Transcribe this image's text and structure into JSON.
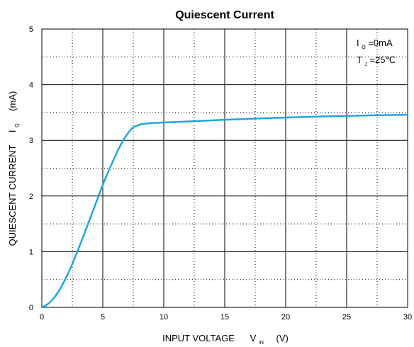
{
  "chart_data": {
    "type": "line",
    "title": "Quiescent Current",
    "xlabel": "INPUT VOLTAGE",
    "xlabel_symbol": "V",
    "xlabel_sub": "IN",
    "xlabel_unit": "(V)",
    "ylabel": "QUIESCENT CURRENT",
    "ylabel_symbol": "I",
    "ylabel_sub": "Q",
    "ylabel_unit": "(mA)",
    "xlim": [
      0,
      30
    ],
    "ylim": [
      0,
      5
    ],
    "x_ticks": [
      "0",
      "5",
      "10",
      "15",
      "20",
      "25",
      "30"
    ],
    "y_ticks": [
      "0",
      "1",
      "2",
      "3",
      "4",
      "5"
    ],
    "grid": true,
    "annotations": {
      "line1_main": "I",
      "line1_sub": "O",
      "line1_rest": "=0mA",
      "line2_main": "T",
      "line2_sub": "J",
      "line2_rest": "=25℃"
    },
    "series": [
      {
        "color": "#1ea7e1",
        "x": [
          0,
          0.5,
          1,
          1.5,
          2,
          2.5,
          3,
          3.5,
          4,
          4.5,
          5,
          5.5,
          6,
          6.5,
          7,
          7.5,
          8,
          8.5,
          9,
          10,
          12,
          15,
          20,
          25,
          30
        ],
        "y": [
          0,
          0.06,
          0.17,
          0.33,
          0.54,
          0.78,
          1.05,
          1.33,
          1.62,
          1.91,
          2.2,
          2.46,
          2.71,
          2.93,
          3.11,
          3.23,
          3.28,
          3.3,
          3.31,
          3.32,
          3.34,
          3.37,
          3.41,
          3.44,
          3.46
        ]
      }
    ]
  }
}
